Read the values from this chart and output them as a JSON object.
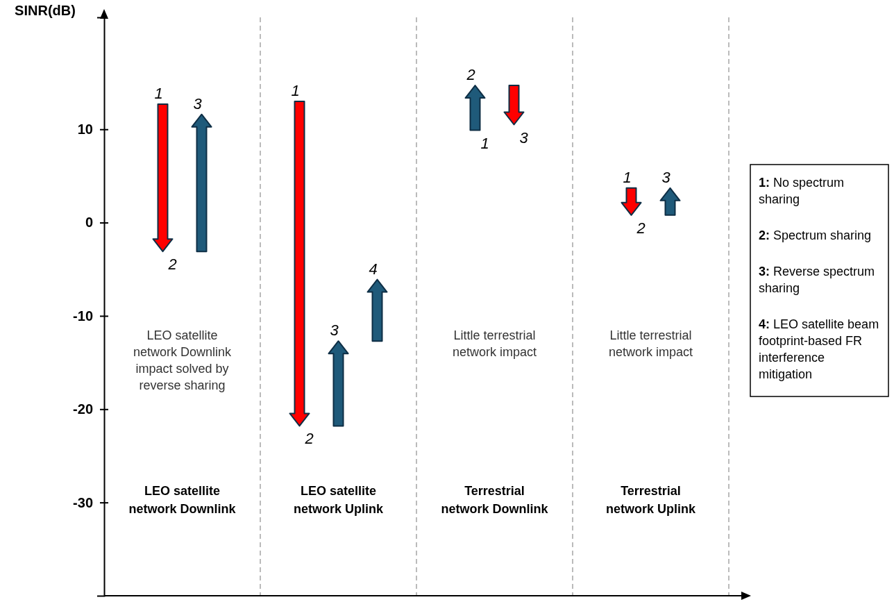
{
  "chart_data": {
    "type": "bar",
    "ylabel": "SINR(dB)",
    "categories": [
      "LEO satellite network Downlink",
      "LEO satellite network Uplink",
      "Terrestrial network Downlink",
      "Terrestrial network Uplink"
    ],
    "series": [
      {
        "values": [
          -15.8,
          -34.8,
          4.8,
          -2.9
        ],
        "base": [
          12.7,
          13.0,
          9.9,
          3.7
        ],
        "colors": [
          "#ff0000",
          "#ff0000",
          "#1f5a7a",
          "#ff0000"
        ]
      },
      {
        "values": [
          14.7,
          9.1,
          -4.2,
          2.9
        ],
        "base": [
          -3.1,
          -21.8,
          14.7,
          0.8
        ],
        "colors": [
          "#1f5a7a",
          "#1f5a7a",
          "#ff0000",
          "#1f5a7a"
        ]
      },
      {
        "values": [
          null,
          6.6,
          null,
          null
        ],
        "base": [
          null,
          -12.7,
          null,
          null
        ],
        "colors": [
          null,
          "#1f5a7a",
          null,
          null
        ]
      }
    ],
    "ylim": [
      -40,
      22
    ],
    "yticks": [
      -30,
      -20,
      -10,
      0,
      10
    ],
    "annotations": [
      "1",
      "2",
      "3",
      "1",
      "2",
      "3",
      "4",
      "1",
      "2",
      "3",
      "1",
      "2",
      "3",
      "LEO satellite network Downlink impact solved by reverse sharing",
      "Little terrestrial network impact",
      "Little terrestrial network impact",
      "1: No spectrum sharing",
      "2: Spectrum sharing",
      "3: Reverse spectrum sharing",
      "4: LEO satellite beam footprint-based FR interference mitigation"
    ]
  }
}
